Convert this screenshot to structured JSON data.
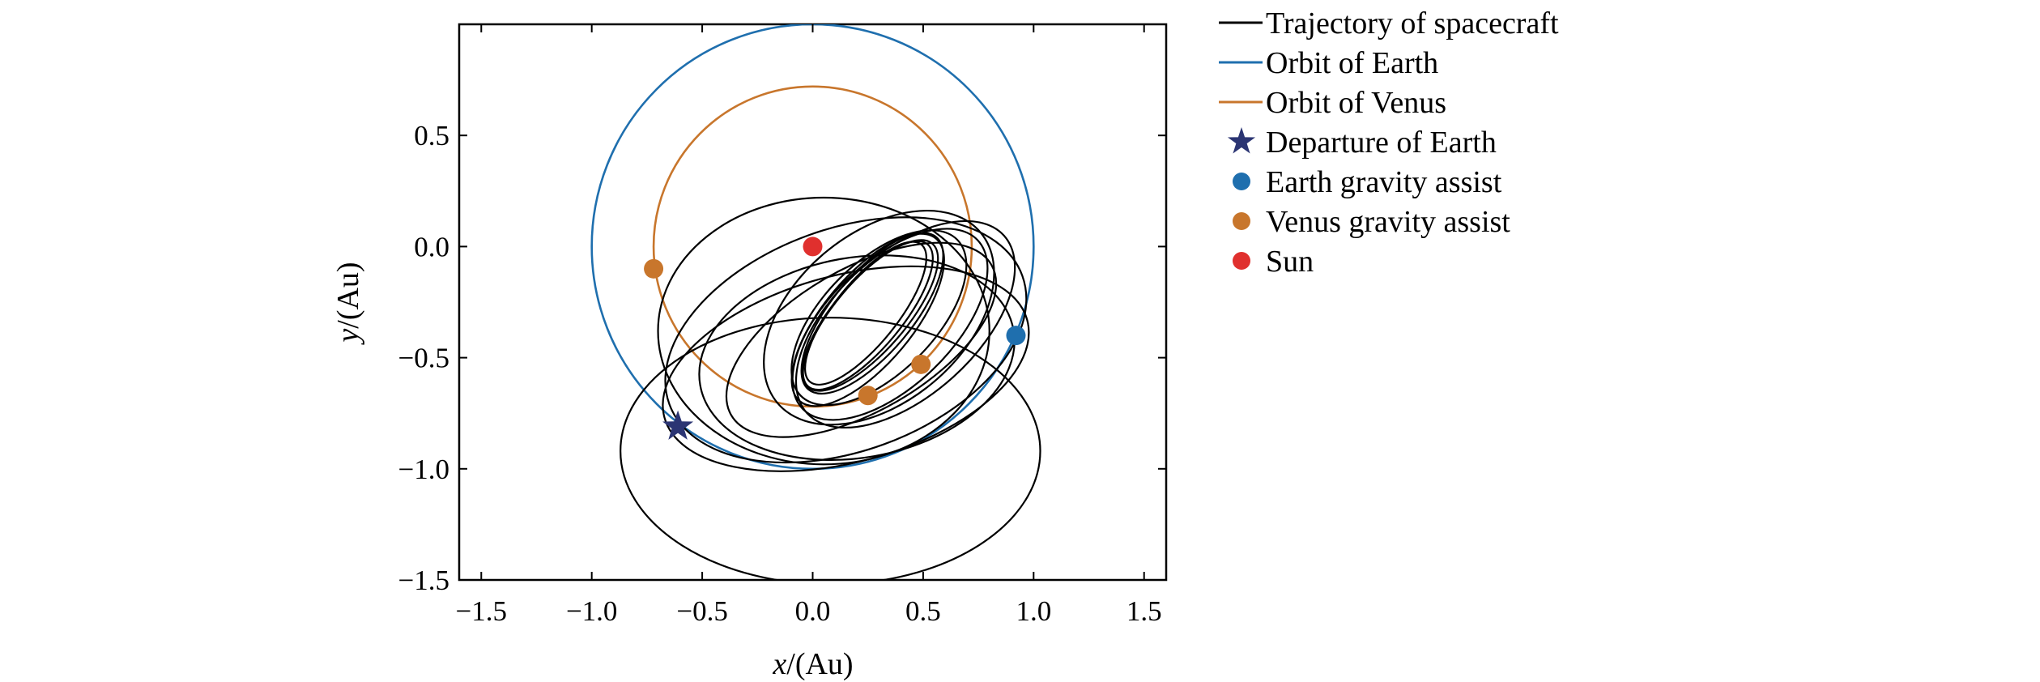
{
  "chart_data": {
    "type": "line",
    "title": "",
    "xlabel_var": "x",
    "xlabel_unit": "/(Au)",
    "ylabel_var": "y",
    "ylabel_unit": "/(Au)",
    "xlim": [
      -1.6,
      1.6
    ],
    "ylim": [
      -1.5,
      1.0
    ],
    "xticks": [
      -1.5,
      -1.0,
      -0.5,
      0.0,
      0.5,
      1.0,
      1.5
    ],
    "xtick_labels": [
      "−1.5",
      "−1.0",
      "−0.5",
      "0.0",
      "0.5",
      "1.0",
      "1.5"
    ],
    "yticks": [
      0.5,
      0.0,
      -0.5,
      -1.0,
      -1.5
    ],
    "ytick_labels": [
      "0.5",
      "0.0",
      "−0.5",
      "−1.0",
      "−1.5"
    ],
    "grid": false,
    "legend_position": "outside-right",
    "colors": {
      "trajectory": "#000000",
      "earth": "#1f6fae",
      "venus": "#c8762c",
      "departure": "#2b3573",
      "sun": "#e0302e"
    },
    "legend": [
      {
        "label": "Trajectory of spacecraft",
        "kind": "line",
        "color": "#000000"
      },
      {
        "label": "Orbit of Earth",
        "kind": "line",
        "color": "#1f6fae"
      },
      {
        "label": "Orbit of Venus",
        "kind": "line",
        "color": "#c8762c"
      },
      {
        "label": "Departure of Earth",
        "kind": "star",
        "color": "#2b3573"
      },
      {
        "label": "Earth gravity assist",
        "kind": "dot",
        "color": "#1f6fae"
      },
      {
        "label": "Venus gravity assist",
        "kind": "dot",
        "color": "#c8762c"
      },
      {
        "label": "Sun",
        "kind": "dot",
        "color": "#e0302e"
      }
    ],
    "orbits": [
      {
        "name": "Orbit of Earth",
        "center": [
          0,
          0
        ],
        "radius": 1.0,
        "color": "#1f6fae"
      },
      {
        "name": "Orbit of Venus",
        "center": [
          0,
          0
        ],
        "radius": 0.72,
        "color": "#c8762c"
      }
    ],
    "trajectory_arcs": [
      {
        "center": [
          0.08,
          -0.92
        ],
        "rx": 0.95,
        "ry": 0.6,
        "rot_deg": 0
      },
      {
        "center": [
          0.15,
          -0.42
        ],
        "rx": 0.85,
        "ry": 0.5,
        "rot_deg": -20
      },
      {
        "center": [
          0.05,
          -0.38
        ],
        "rx": 0.75,
        "ry": 0.6,
        "rot_deg": 0
      },
      {
        "center": [
          0.3,
          -0.32
        ],
        "rx": 0.6,
        "ry": 0.38,
        "rot_deg": -40
      },
      {
        "center": [
          0.42,
          -0.35
        ],
        "rx": 0.6,
        "ry": 0.32,
        "rot_deg": -42
      },
      {
        "center": [
          0.2,
          -0.5
        ],
        "rx": 0.72,
        "ry": 0.45,
        "rot_deg": -10
      },
      {
        "center": [
          0.25,
          -0.33
        ],
        "rx": 0.48,
        "ry": 0.2,
        "rot_deg": -50
      },
      {
        "center": [
          0.27,
          -0.3
        ],
        "rx": 0.45,
        "ry": 0.18,
        "rot_deg": -50
      },
      {
        "center": [
          0.26,
          -0.31
        ],
        "rx": 0.43,
        "ry": 0.16,
        "rot_deg": -49
      },
      {
        "center": [
          0.25,
          -0.31
        ],
        "rx": 0.42,
        "ry": 0.15,
        "rot_deg": -50
      },
      {
        "center": [
          0.24,
          -0.3
        ],
        "rx": 0.4,
        "ry": 0.14,
        "rot_deg": -51
      },
      {
        "center": [
          0.3,
          -0.32
        ],
        "rx": 0.5,
        "ry": 0.25,
        "rot_deg": -45
      },
      {
        "center": [
          0.35,
          -0.35
        ],
        "rx": 0.55,
        "ry": 0.28,
        "rot_deg": -44
      },
      {
        "center": [
          0.15,
          -0.55
        ],
        "rx": 0.85,
        "ry": 0.42,
        "rot_deg": -15
      },
      {
        "center": [
          0.22,
          -0.42
        ],
        "rx": 0.68,
        "ry": 0.32,
        "rot_deg": -30
      }
    ],
    "points": [
      {
        "name": "Departure of Earth",
        "kind": "star",
        "x": -0.61,
        "y": -0.81,
        "color": "#2b3573"
      },
      {
        "name": "Earth gravity assist",
        "kind": "dot",
        "x": 0.92,
        "y": -0.4,
        "color": "#1f6fae"
      },
      {
        "name": "Venus gravity assist",
        "kind": "dot",
        "x": -0.72,
        "y": -0.1,
        "color": "#c8762c"
      },
      {
        "name": "Venus gravity assist",
        "kind": "dot",
        "x": 0.25,
        "y": -0.67,
        "color": "#c8762c"
      },
      {
        "name": "Venus gravity assist",
        "kind": "dot",
        "x": 0.49,
        "y": -0.53,
        "color": "#c8762c"
      },
      {
        "name": "Sun",
        "kind": "dot",
        "x": 0.0,
        "y": 0.0,
        "color": "#e0302e"
      }
    ]
  }
}
